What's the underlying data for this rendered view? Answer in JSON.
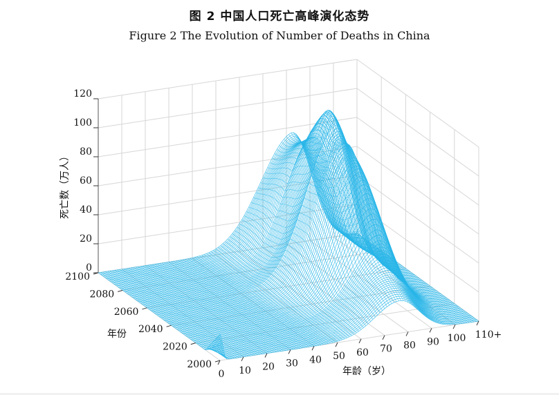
{
  "figure": {
    "title_cn": "图 2  中国人口死亡高峰演化态势",
    "title_en": "Figure 2   The Evolution of Number of Deaths in China"
  },
  "chart_data": {
    "type": "surface3d",
    "title": "Figure 2   The Evolution of Number of Deaths in China",
    "zlabel": "死亡数（万人）",
    "ylabel": "年份",
    "xlabel": "年龄（岁）",
    "x_ticks": [
      "0",
      "10",
      "20",
      "30",
      "40",
      "50",
      "60",
      "70",
      "80",
      "90",
      "100",
      "110+"
    ],
    "y_ticks": [
      "2000",
      "2020",
      "2040",
      "2060",
      "2080",
      "2100"
    ],
    "z_ticks": [
      "0",
      "20",
      "40",
      "60",
      "80",
      "100",
      "120"
    ],
    "xlim": [
      0,
      110
    ],
    "ylim": [
      2000,
      2100
    ],
    "zlim": [
      0,
      120
    ],
    "grid": true,
    "surface_color": "#29b6e8",
    "ridges": [
      {
        "year": 2000,
        "peak_age": 77,
        "peak_deaths": 21
      },
      {
        "year": 2025,
        "peak_age": 80,
        "peak_deaths": 47
      },
      {
        "year": 2040,
        "peak_age": 80,
        "peak_deaths": 84
      },
      {
        "year": 2050,
        "peak_age": 80,
        "peak_deaths": 106
      },
      {
        "year": 2060,
        "peak_age": 80,
        "peak_deaths": 112
      },
      {
        "year": 2070,
        "peak_age": 82,
        "peak_deaths": 103
      },
      {
        "year": 2080,
        "peak_age": 82,
        "peak_deaths": 82
      },
      {
        "year": 2100,
        "peak_age": 82,
        "peak_deaths": 80
      }
    ],
    "infant_peak": {
      "year": 2000,
      "age": 0,
      "deaths": 18
    }
  }
}
